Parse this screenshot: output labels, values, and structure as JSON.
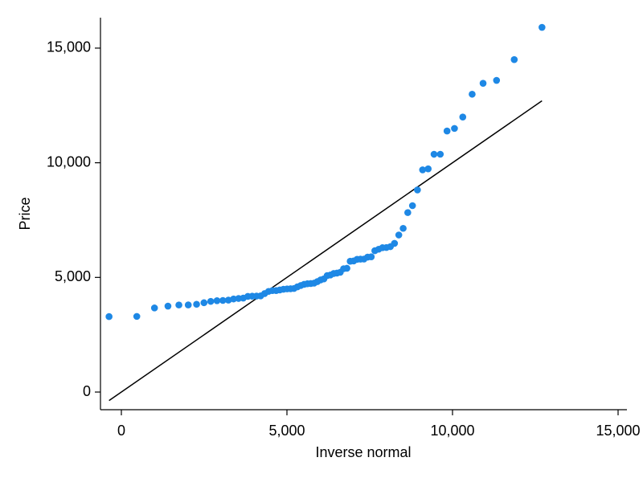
{
  "chart_data": {
    "type": "scatter",
    "xlabel": "Inverse normal",
    "ylabel": "Price",
    "color": "#1e88e5",
    "x": [
      -372,
      466,
      1000,
      1407,
      1737,
      2020,
      2271,
      2495,
      2699,
      2888,
      3065,
      3233,
      3389,
      3539,
      3681,
      3820,
      3952,
      4082,
      4206,
      4327,
      4445,
      4560,
      4675,
      4784,
      4894,
      5003,
      5109,
      5212,
      5315,
      5419,
      5519,
      5619,
      5720,
      5820,
      5917,
      6017,
      6115,
      6215,
      6313,
      6413,
      6510,
      6610,
      6711,
      6811,
      6911,
      7015,
      7118,
      7221,
      7327,
      7436,
      7545,
      7655,
      7770,
      7885,
      8003,
      8124,
      8248,
      8378,
      8510,
      8649,
      8791,
      8941,
      9097,
      9265,
      9442,
      9631,
      9835,
      10059,
      10310,
      10593,
      10923,
      11330,
      11864,
      12702
    ],
    "values": [
      3291,
      3299,
      3667,
      3748,
      3798,
      3799,
      3829,
      3895,
      3955,
      3984,
      3995,
      4010,
      4060,
      4082,
      4099,
      4172,
      4181,
      4187,
      4195,
      4296,
      4389,
      4424,
      4425,
      4453,
      4482,
      4499,
      4504,
      4516,
      4589,
      4647,
      4697,
      4723,
      4733,
      4749,
      4816,
      4890,
      4934,
      5079,
      5104,
      5172,
      5189,
      5222,
      5379,
      5397,
      5705,
      5719,
      5788,
      5798,
      5799,
      5886,
      5899,
      6165,
      6229,
      6295,
      6303,
      6342,
      6486,
      6850,
      7140,
      7827,
      8129,
      8814,
      9690,
      9735,
      10371,
      10372,
      11385,
      11497,
      11995,
      12990,
      13466,
      13594,
      14500,
      15906
    ],
    "reference_line": {
      "color": "#000000",
      "x": [
        -372,
        12702
      ],
      "y": [
        -372,
        12702
      ]
    },
    "xlim": [
      -631,
      15267
    ],
    "ylim": [
      -770,
      16328
    ],
    "xticks": [
      0,
      {
        "value": 5000,
        "label": "5,000"
      },
      {
        "value": 10000,
        "label": "10,000"
      },
      {
        "value": 15000,
        "label": "15,000"
      }
    ],
    "yticks": [
      0,
      {
        "value": 5000,
        "label": "5,000"
      },
      {
        "value": 10000,
        "label": "10,000"
      },
      {
        "value": 15000,
        "label": "15,000"
      }
    ]
  }
}
